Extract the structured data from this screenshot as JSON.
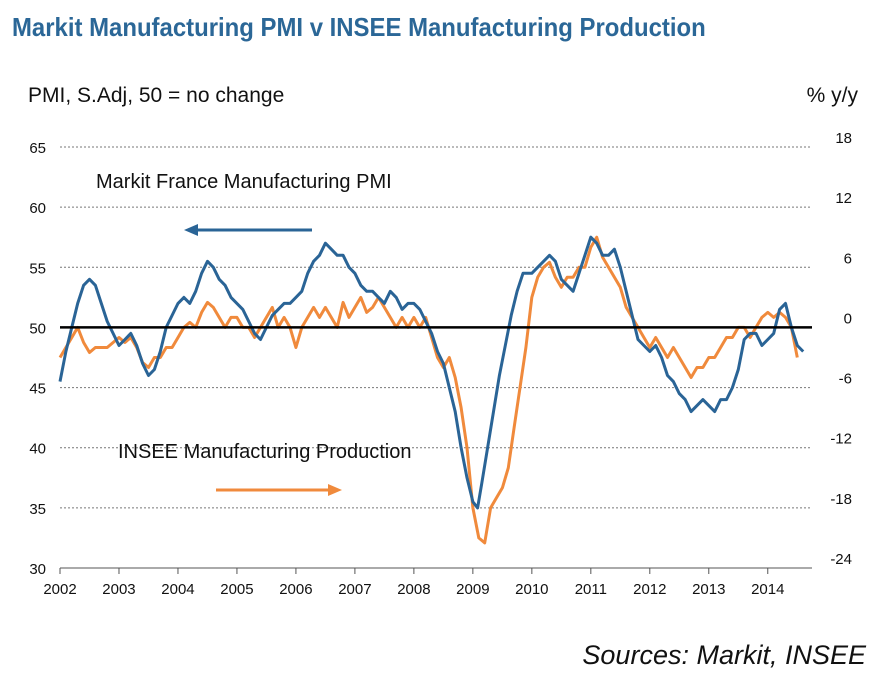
{
  "title": "Markit Manufacturing PMI v INSEE Manufacturing Production",
  "source": "Sources: Markit, INSEE",
  "colors": {
    "pmi": "#2a6496",
    "production": "#f08a3c",
    "zero_line": "#000000",
    "grid": "#777777",
    "title": "#2b6797"
  },
  "chart_data": {
    "type": "line",
    "left_axis": {
      "label": "PMI, S.Adj, 50 = no change",
      "ylim": [
        30,
        65
      ],
      "ticks": [
        "30",
        "35",
        "40",
        "45",
        "50",
        "55",
        "60",
        "65"
      ]
    },
    "right_axis": {
      "label": "% y/y",
      "ylim": [
        -24,
        18
      ],
      "ticks": [
        "-24",
        "-18",
        "-12",
        "-6",
        "0",
        "6",
        "12",
        "18"
      ]
    },
    "x_axis": {
      "xlim": [
        2002.0,
        2014.75
      ],
      "ticks": [
        "2002",
        "2003",
        "2004",
        "2005",
        "2006",
        "2007",
        "2008",
        "2009",
        "2010",
        "2011",
        "2012",
        "2013",
        "2014"
      ]
    },
    "grid": "horizontal dotted",
    "reference_line": {
      "axis": "left",
      "value": 50
    },
    "series": [
      {
        "name": "Markit France Manufacturing PMI",
        "axis": "left",
        "arrow": "left",
        "points": [
          [
            2002.0,
            45.5
          ],
          [
            2002.1,
            48
          ],
          [
            2002.2,
            50
          ],
          [
            2002.3,
            52
          ],
          [
            2002.4,
            53.5
          ],
          [
            2002.5,
            54
          ],
          [
            2002.6,
            53.5
          ],
          [
            2002.7,
            52
          ],
          [
            2002.8,
            50.5
          ],
          [
            2002.9,
            49.5
          ],
          [
            2003.0,
            48.5
          ],
          [
            2003.1,
            49
          ],
          [
            2003.2,
            49.5
          ],
          [
            2003.3,
            48.5
          ],
          [
            2003.4,
            47
          ],
          [
            2003.5,
            46
          ],
          [
            2003.6,
            46.5
          ],
          [
            2003.7,
            48
          ],
          [
            2003.8,
            50
          ],
          [
            2003.9,
            51
          ],
          [
            2004.0,
            52
          ],
          [
            2004.1,
            52.5
          ],
          [
            2004.2,
            52
          ],
          [
            2004.3,
            53
          ],
          [
            2004.4,
            54.5
          ],
          [
            2004.5,
            55.5
          ],
          [
            2004.6,
            55
          ],
          [
            2004.7,
            54
          ],
          [
            2004.8,
            53.5
          ],
          [
            2004.9,
            52.5
          ],
          [
            2005.0,
            52
          ],
          [
            2005.1,
            51.5
          ],
          [
            2005.2,
            50.5
          ],
          [
            2005.3,
            49.5
          ],
          [
            2005.4,
            49
          ],
          [
            2005.5,
            50
          ],
          [
            2005.6,
            51
          ],
          [
            2005.7,
            51.5
          ],
          [
            2005.8,
            52
          ],
          [
            2005.9,
            52
          ],
          [
            2006.0,
            52.5
          ],
          [
            2006.1,
            53
          ],
          [
            2006.2,
            54.5
          ],
          [
            2006.3,
            55.5
          ],
          [
            2006.4,
            56
          ],
          [
            2006.5,
            57
          ],
          [
            2006.6,
            56.5
          ],
          [
            2006.7,
            56
          ],
          [
            2006.8,
            56
          ],
          [
            2006.9,
            55
          ],
          [
            2007.0,
            54.5
          ],
          [
            2007.1,
            53.5
          ],
          [
            2007.2,
            53
          ],
          [
            2007.3,
            53
          ],
          [
            2007.4,
            52.5
          ],
          [
            2007.5,
            52
          ],
          [
            2007.6,
            53
          ],
          [
            2007.7,
            52.5
          ],
          [
            2007.8,
            51.5
          ],
          [
            2007.9,
            52
          ],
          [
            2008.0,
            52
          ],
          [
            2008.1,
            51.5
          ],
          [
            2008.2,
            50.5
          ],
          [
            2008.3,
            49.5
          ],
          [
            2008.4,
            48
          ],
          [
            2008.5,
            47
          ],
          [
            2008.6,
            45
          ],
          [
            2008.7,
            43
          ],
          [
            2008.8,
            40
          ],
          [
            2008.9,
            37.5
          ],
          [
            2009.0,
            35.5
          ],
          [
            2009.08,
            35
          ],
          [
            2009.15,
            37
          ],
          [
            2009.25,
            40
          ],
          [
            2009.35,
            43
          ],
          [
            2009.45,
            46
          ],
          [
            2009.55,
            48.5
          ],
          [
            2009.65,
            51
          ],
          [
            2009.75,
            53
          ],
          [
            2009.85,
            54.5
          ],
          [
            2010.0,
            54.5
          ],
          [
            2010.1,
            55
          ],
          [
            2010.2,
            55.5
          ],
          [
            2010.3,
            56
          ],
          [
            2010.4,
            55.5
          ],
          [
            2010.5,
            54
          ],
          [
            2010.6,
            53.5
          ],
          [
            2010.7,
            53
          ],
          [
            2010.8,
            54.5
          ],
          [
            2010.9,
            56
          ],
          [
            2011.0,
            57.5
          ],
          [
            2011.1,
            57
          ],
          [
            2011.2,
            56
          ],
          [
            2011.3,
            56
          ],
          [
            2011.4,
            56.5
          ],
          [
            2011.5,
            55
          ],
          [
            2011.6,
            53
          ],
          [
            2011.7,
            51
          ],
          [
            2011.8,
            49
          ],
          [
            2011.9,
            48.5
          ],
          [
            2012.0,
            48
          ],
          [
            2012.1,
            48.5
          ],
          [
            2012.2,
            47.5
          ],
          [
            2012.3,
            46
          ],
          [
            2012.4,
            45.5
          ],
          [
            2012.5,
            44.5
          ],
          [
            2012.6,
            44
          ],
          [
            2012.7,
            43
          ],
          [
            2012.8,
            43.5
          ],
          [
            2012.9,
            44
          ],
          [
            2013.0,
            43.5
          ],
          [
            2013.1,
            43
          ],
          [
            2013.2,
            44
          ],
          [
            2013.3,
            44
          ],
          [
            2013.4,
            45
          ],
          [
            2013.5,
            46.5
          ],
          [
            2013.6,
            49
          ],
          [
            2013.7,
            49.5
          ],
          [
            2013.8,
            49.5
          ],
          [
            2013.9,
            48.5
          ],
          [
            2014.0,
            49
          ],
          [
            2014.1,
            49.5
          ],
          [
            2014.2,
            51.5
          ],
          [
            2014.3,
            52
          ],
          [
            2014.4,
            50
          ],
          [
            2014.5,
            48.5
          ],
          [
            2014.6,
            48
          ]
        ]
      },
      {
        "name": "INSEE Manufacturing Production",
        "axis": "right",
        "arrow": "right",
        "points": [
          [
            2002.0,
            -3
          ],
          [
            2002.1,
            -2
          ],
          [
            2002.2,
            -1
          ],
          [
            2002.3,
            0
          ],
          [
            2002.4,
            -1.5
          ],
          [
            2002.5,
            -2.5
          ],
          [
            2002.6,
            -2
          ],
          [
            2002.7,
            -2
          ],
          [
            2002.8,
            -2
          ],
          [
            2002.9,
            -1.5
          ],
          [
            2003.0,
            -1
          ],
          [
            2003.1,
            -1.5
          ],
          [
            2003.2,
            -1
          ],
          [
            2003.3,
            -2
          ],
          [
            2003.4,
            -3.5
          ],
          [
            2003.5,
            -4
          ],
          [
            2003.6,
            -3
          ],
          [
            2003.7,
            -3
          ],
          [
            2003.8,
            -2
          ],
          [
            2003.9,
            -2
          ],
          [
            2004.0,
            -1
          ],
          [
            2004.1,
            0
          ],
          [
            2004.2,
            0.5
          ],
          [
            2004.3,
            0
          ],
          [
            2004.4,
            1.5
          ],
          [
            2004.5,
            2.5
          ],
          [
            2004.6,
            2
          ],
          [
            2004.7,
            1
          ],
          [
            2004.8,
            0
          ],
          [
            2004.9,
            1
          ],
          [
            2005.0,
            1
          ],
          [
            2005.1,
            0
          ],
          [
            2005.2,
            0
          ],
          [
            2005.3,
            -1
          ],
          [
            2005.4,
            0
          ],
          [
            2005.5,
            1
          ],
          [
            2005.6,
            2
          ],
          [
            2005.7,
            0
          ],
          [
            2005.8,
            1
          ],
          [
            2005.9,
            0
          ],
          [
            2006.0,
            -2
          ],
          [
            2006.1,
            0
          ],
          [
            2006.2,
            1
          ],
          [
            2006.3,
            2
          ],
          [
            2006.4,
            1
          ],
          [
            2006.5,
            2
          ],
          [
            2006.6,
            1
          ],
          [
            2006.7,
            0
          ],
          [
            2006.8,
            2.5
          ],
          [
            2006.9,
            1
          ],
          [
            2007.0,
            2
          ],
          [
            2007.1,
            3
          ],
          [
            2007.2,
            1.5
          ],
          [
            2007.3,
            2
          ],
          [
            2007.4,
            3
          ],
          [
            2007.5,
            2
          ],
          [
            2007.6,
            1
          ],
          [
            2007.7,
            0
          ],
          [
            2007.8,
            1
          ],
          [
            2007.9,
            0
          ],
          [
            2008.0,
            1
          ],
          [
            2008.1,
            0
          ],
          [
            2008.2,
            1
          ],
          [
            2008.3,
            -1
          ],
          [
            2008.4,
            -3
          ],
          [
            2008.5,
            -4
          ],
          [
            2008.6,
            -3
          ],
          [
            2008.7,
            -5
          ],
          [
            2008.8,
            -8
          ],
          [
            2008.9,
            -12
          ],
          [
            2009.0,
            -18
          ],
          [
            2009.1,
            -21
          ],
          [
            2009.2,
            -21.5
          ],
          [
            2009.3,
            -18
          ],
          [
            2009.4,
            -17
          ],
          [
            2009.5,
            -16
          ],
          [
            2009.6,
            -14
          ],
          [
            2009.7,
            -10
          ],
          [
            2009.8,
            -6
          ],
          [
            2009.9,
            -2
          ],
          [
            2010.0,
            3
          ],
          [
            2010.1,
            5
          ],
          [
            2010.2,
            6
          ],
          [
            2010.3,
            6.5
          ],
          [
            2010.4,
            5
          ],
          [
            2010.5,
            4
          ],
          [
            2010.6,
            5
          ],
          [
            2010.7,
            5
          ],
          [
            2010.8,
            6
          ],
          [
            2010.9,
            6
          ],
          [
            2011.0,
            8
          ],
          [
            2011.1,
            9
          ],
          [
            2011.2,
            7
          ],
          [
            2011.3,
            6
          ],
          [
            2011.4,
            5
          ],
          [
            2011.5,
            4
          ],
          [
            2011.6,
            2
          ],
          [
            2011.7,
            1
          ],
          [
            2011.8,
            0
          ],
          [
            2011.9,
            -1
          ],
          [
            2012.0,
            -2
          ],
          [
            2012.1,
            -1
          ],
          [
            2012.2,
            -2
          ],
          [
            2012.3,
            -3
          ],
          [
            2012.4,
            -2
          ],
          [
            2012.5,
            -3
          ],
          [
            2012.6,
            -4
          ],
          [
            2012.7,
            -5
          ],
          [
            2012.8,
            -4
          ],
          [
            2012.9,
            -4
          ],
          [
            2013.0,
            -3
          ],
          [
            2013.1,
            -3
          ],
          [
            2013.2,
            -2
          ],
          [
            2013.3,
            -1
          ],
          [
            2013.4,
            -1
          ],
          [
            2013.5,
            0
          ],
          [
            2013.6,
            0
          ],
          [
            2013.7,
            -1
          ],
          [
            2013.8,
            0
          ],
          [
            2013.9,
            1
          ],
          [
            2014.0,
            1.5
          ],
          [
            2014.1,
            1
          ],
          [
            2014.2,
            1.5
          ],
          [
            2014.3,
            1
          ],
          [
            2014.4,
            0
          ],
          [
            2014.5,
            -3
          ]
        ]
      }
    ]
  }
}
